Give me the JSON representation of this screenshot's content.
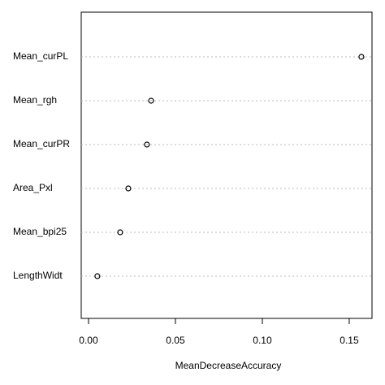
{
  "chart_data": {
    "type": "dot",
    "categories": [
      "Mean_curPL",
      "Mean_rgh",
      "Mean_curPR",
      "Area_Pxl",
      "Mean_bpi25",
      "LengthWidt"
    ],
    "values": [
      0.157,
      0.036,
      0.0336,
      0.0229,
      0.0182,
      0.0051
    ],
    "xlabel": "MeanDecreaseAccuracy",
    "xlim": [
      -0.0042,
      0.1631
    ],
    "xticks": [
      {
        "value": 0,
        "label": "0.00"
      },
      0.05,
      {
        "value": 0.1,
        "label": "0.10"
      },
      0.15
    ],
    "grid": true,
    "color": "#000000"
  }
}
